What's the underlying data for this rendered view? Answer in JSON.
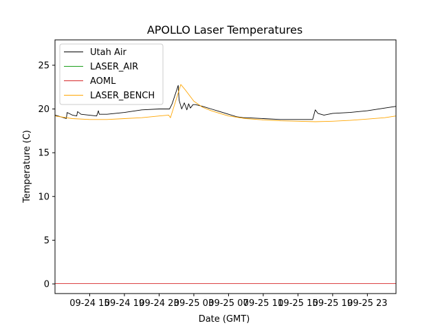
{
  "chart_data": {
    "type": "line",
    "title": "APOLLO Laser Temperatures",
    "xlabel": "Date (GMT)",
    "ylabel": "Temperature (C)",
    "xlim": [
      0,
      39.3
    ],
    "ylim": [
      -1.1,
      27.9
    ],
    "x_unit": "hours since 09-24 11:00",
    "x_ticks": [
      {
        "value": 4,
        "label": "09-24 15"
      },
      {
        "value": 8,
        "label": "09-24 19"
      },
      {
        "value": 12,
        "label": "09-24 23"
      },
      {
        "value": 16,
        "label": "09-25 03"
      },
      {
        "value": 20,
        "label": "09-25 07"
      },
      {
        "value": 24,
        "label": "09-25 11"
      },
      {
        "value": 28,
        "label": "09-25 15"
      },
      {
        "value": 32,
        "label": "09-25 19"
      },
      {
        "value": 36,
        "label": "09-25 23"
      }
    ],
    "y_ticks": [
      {
        "value": 0,
        "label": "0"
      },
      {
        "value": 5,
        "label": "5"
      },
      {
        "value": 10,
        "label": "10"
      },
      {
        "value": 15,
        "label": "15"
      },
      {
        "value": 20,
        "label": "20"
      },
      {
        "value": 25,
        "label": "25"
      }
    ],
    "grid": false,
    "legend_position": "top-left",
    "series": [
      {
        "name": "Utah Air",
        "color": "#000000",
        "x": [
          0,
          1,
          1.3,
          1.4,
          2,
          2.5,
          2.6,
          3,
          4.8,
          5,
          5.1,
          6,
          8,
          10,
          12,
          13.2,
          13.5,
          13.8,
          14.2,
          14.3,
          14.6,
          14.9,
          15.2,
          15.4,
          15.6,
          15.9,
          16.2,
          17,
          18,
          19,
          20,
          21,
          21.7,
          22,
          24,
          26,
          28,
          29.7,
          30.0,
          30.3,
          31,
          32,
          34,
          36,
          38,
          39.3
        ],
        "y": [
          19.3,
          19.0,
          18.9,
          19.6,
          19.3,
          19.2,
          19.7,
          19.4,
          19.2,
          19.8,
          19.4,
          19.4,
          19.6,
          19.9,
          20.0,
          20.0,
          20.6,
          21.5,
          22.7,
          21.0,
          20.0,
          20.7,
          19.9,
          20.6,
          20.1,
          20.5,
          20.5,
          20.3,
          20.0,
          19.7,
          19.4,
          19.1,
          19.0,
          19.0,
          18.9,
          18.8,
          18.8,
          18.8,
          19.9,
          19.5,
          19.3,
          19.5,
          19.6,
          19.8,
          20.1,
          20.3
        ]
      },
      {
        "name": "LASER_AIR",
        "color": "#1a9e1a",
        "x": [],
        "y": []
      },
      {
        "name": "AOML",
        "color": "#d62728",
        "x": [
          0,
          39.3
        ],
        "y": [
          0.05,
          0.05
        ]
      },
      {
        "name": "LASER_BENCH",
        "color": "#ffa500",
        "x": [
          0,
          2,
          4,
          6,
          8,
          10,
          12,
          13.1,
          13.3,
          14.0,
          14.5,
          15.0,
          16,
          17,
          18,
          19,
          20,
          22,
          24,
          26,
          28,
          30,
          32,
          34,
          36,
          38,
          39.3
        ],
        "y": [
          19.2,
          18.9,
          18.8,
          18.8,
          18.9,
          19.0,
          19.2,
          19.3,
          19.0,
          21.2,
          22.8,
          22.2,
          20.9,
          20.2,
          19.8,
          19.5,
          19.2,
          18.9,
          18.75,
          18.65,
          18.6,
          18.55,
          18.6,
          18.7,
          18.85,
          19.0,
          19.2
        ]
      }
    ]
  }
}
